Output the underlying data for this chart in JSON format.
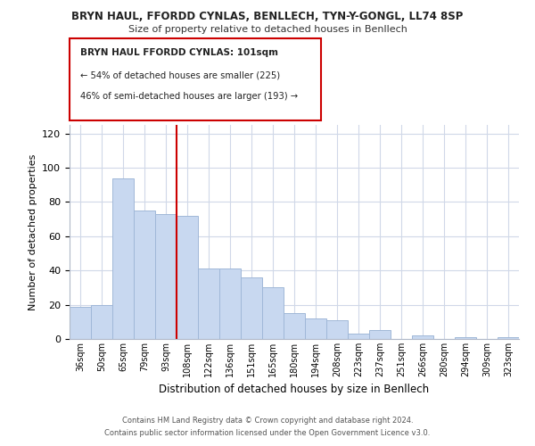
{
  "title1": "BRYN HAUL, FFORDD CYNLAS, BENLLECH, TYN-Y-GONGL, LL74 8SP",
  "title2": "Size of property relative to detached houses in Benllech",
  "xlabel": "Distribution of detached houses by size in Benllech",
  "ylabel": "Number of detached properties",
  "categories": [
    "36sqm",
    "50sqm",
    "65sqm",
    "79sqm",
    "93sqm",
    "108sqm",
    "122sqm",
    "136sqm",
    "151sqm",
    "165sqm",
    "180sqm",
    "194sqm",
    "208sqm",
    "223sqm",
    "237sqm",
    "251sqm",
    "266sqm",
    "280sqm",
    "294sqm",
    "309sqm",
    "323sqm"
  ],
  "values": [
    19,
    20,
    94,
    75,
    73,
    72,
    41,
    41,
    36,
    30,
    15,
    12,
    11,
    3,
    5,
    0,
    2,
    0,
    1,
    0,
    1
  ],
  "bar_color": "#c8d8f0",
  "bar_edge_color": "#a0b8d8",
  "vline_color": "#cc0000",
  "ylim": [
    0,
    125
  ],
  "yticks": [
    0,
    20,
    40,
    60,
    80,
    100,
    120
  ],
  "annotation_title": "BRYN HAUL FFORDD CYNLAS: 101sqm",
  "annotation_line1": "← 54% of detached houses are smaller (225)",
  "annotation_line2": "46% of semi-detached houses are larger (193) →",
  "footer1": "Contains HM Land Registry data © Crown copyright and database right 2024.",
  "footer2": "Contains public sector information licensed under the Open Government Licence v3.0.",
  "background_color": "#ffffff",
  "grid_color": "#d0d8e8"
}
